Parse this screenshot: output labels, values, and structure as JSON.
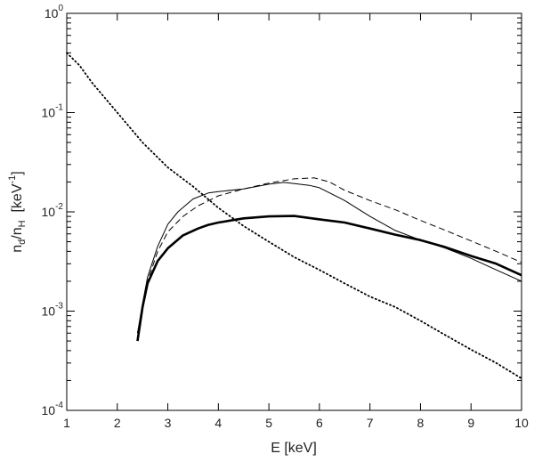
{
  "chart_data": {
    "type": "line",
    "xlabel": "E [keV]",
    "ylabel": {
      "base": "n",
      "sub1": "d",
      "mid": "/n",
      "sub2": "H",
      "unit_open": "  [keV",
      "unit_exp": "-1",
      "unit_close": "]"
    },
    "xlim": [
      1,
      10
    ],
    "ylim": [
      0.0001,
      1
    ],
    "yscale": "log",
    "grid": false,
    "legend": "none",
    "x_ticks": [
      1,
      2,
      3,
      4,
      5,
      6,
      7,
      8,
      9,
      10
    ],
    "y_ticks": [
      {
        "value": 0.0001,
        "base": "10",
        "exp": "-4"
      },
      {
        "value": 0.001,
        "base": "10",
        "exp": "-3"
      },
      {
        "value": 0.01,
        "base": "10",
        "exp": "-2"
      },
      {
        "value": 0.1,
        "base": "10",
        "exp": "-1"
      },
      {
        "value": 1,
        "base": "10",
        "exp": "0"
      }
    ],
    "series": [
      {
        "style": "dotted",
        "color": "#000000",
        "x": [
          1.0,
          1.25,
          1.5,
          2.0,
          2.5,
          3.0,
          3.5,
          4.0,
          4.5,
          5.0,
          5.5,
          6.0,
          6.5,
          7.0,
          7.5,
          8.0,
          8.5,
          9.0,
          9.5,
          10.0
        ],
        "y": [
          0.4,
          0.3,
          0.2,
          0.1,
          0.05,
          0.028,
          0.018,
          0.011,
          0.0072,
          0.005,
          0.0035,
          0.0026,
          0.0019,
          0.0014,
          0.0011,
          0.0008,
          0.00057,
          0.00041,
          0.0003,
          0.00021
        ]
      },
      {
        "style": "thin-solid",
        "color": "#000000",
        "x": [
          2.4,
          2.5,
          2.6,
          2.8,
          3.0,
          3.2,
          3.5,
          3.8,
          4.0,
          4.5,
          5.0,
          5.3,
          5.6,
          5.8,
          6.0,
          6.5,
          7.0,
          7.5,
          8.0,
          8.5,
          9.0,
          9.5,
          10.0
        ],
        "y": [
          0.0006,
          0.0012,
          0.0022,
          0.0045,
          0.0075,
          0.01,
          0.0135,
          0.0155,
          0.016,
          0.017,
          0.019,
          0.0198,
          0.019,
          0.0185,
          0.0175,
          0.013,
          0.009,
          0.0065,
          0.0052,
          0.0043,
          0.0034,
          0.0026,
          0.002
        ]
      },
      {
        "style": "dashed",
        "color": "#000000",
        "x": [
          2.4,
          2.5,
          2.6,
          2.8,
          3.0,
          3.3,
          3.6,
          4.0,
          4.5,
          5.0,
          5.5,
          5.9,
          6.2,
          6.5,
          7.0,
          7.5,
          8.0,
          8.5,
          9.0,
          9.5,
          10.0
        ],
        "y": [
          0.0006,
          0.0011,
          0.002,
          0.004,
          0.0063,
          0.009,
          0.0115,
          0.0145,
          0.017,
          0.0195,
          0.0215,
          0.022,
          0.02,
          0.0165,
          0.013,
          0.0105,
          0.0082,
          0.0065,
          0.0051,
          0.004,
          0.0031
        ]
      },
      {
        "style": "thick-solid",
        "color": "#000000",
        "x": [
          2.4,
          2.5,
          2.6,
          2.8,
          3.0,
          3.3,
          3.6,
          3.8,
          4.0,
          4.5,
          5.0,
          5.5,
          6.0,
          6.5,
          7.0,
          7.5,
          8.0,
          8.5,
          9.0,
          9.5,
          10.0
        ],
        "y": [
          0.0005,
          0.0011,
          0.0019,
          0.0032,
          0.0043,
          0.0058,
          0.0068,
          0.0074,
          0.0078,
          0.0086,
          0.009,
          0.0091,
          0.0084,
          0.0078,
          0.0068,
          0.0059,
          0.0052,
          0.0044,
          0.0036,
          0.003,
          0.0023
        ]
      }
    ]
  }
}
